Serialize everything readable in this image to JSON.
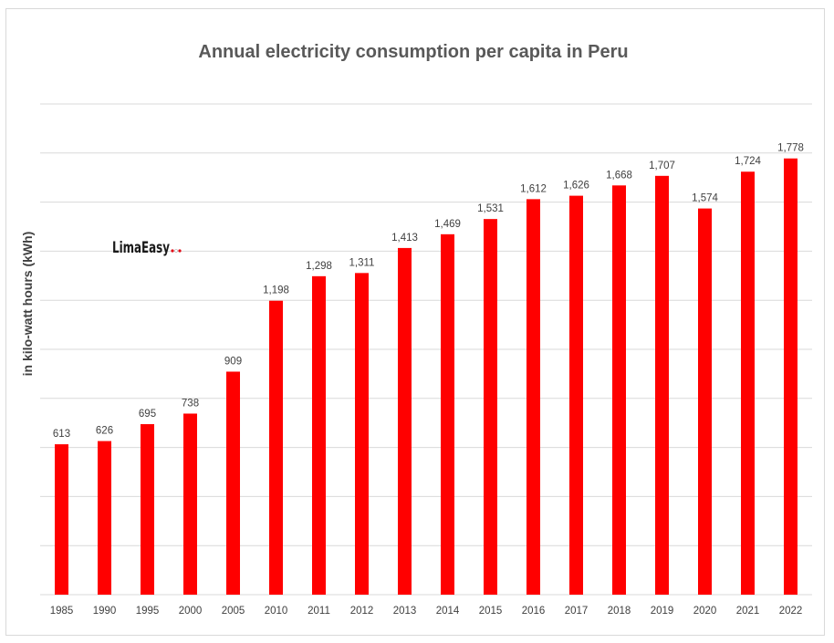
{
  "chart_data": {
    "type": "bar",
    "title": "Annual electricity consumption per capita in Peru",
    "ylabel": "in kilo-watt hours (kWh)",
    "xlabel": "",
    "categories": [
      "1985",
      "1990",
      "1995",
      "2000",
      "2005",
      "2010",
      "2011",
      "2012",
      "2013",
      "2014",
      "2015",
      "2016",
      "2017",
      "2018",
      "2019",
      "2020",
      "2021",
      "2022"
    ],
    "values": [
      613,
      626,
      695,
      738,
      909,
      1198,
      1298,
      1311,
      1413,
      1469,
      1531,
      1612,
      1626,
      1668,
      1707,
      1574,
      1724,
      1778
    ],
    "data_labels": [
      "613",
      "626",
      "695",
      "738",
      "909",
      "1,198",
      "1,298",
      "1,311",
      "1,413",
      "1,469",
      "1,531",
      "1,612",
      "1,626",
      "1,668",
      "1,707",
      "1,574",
      "1,724",
      "1,778"
    ],
    "ylim": [
      0,
      2000
    ],
    "grid": true,
    "bar_color": "#ff0000",
    "grid_color": "#d9d9d9"
  },
  "logo": {
    "text": "LimaEasy"
  }
}
